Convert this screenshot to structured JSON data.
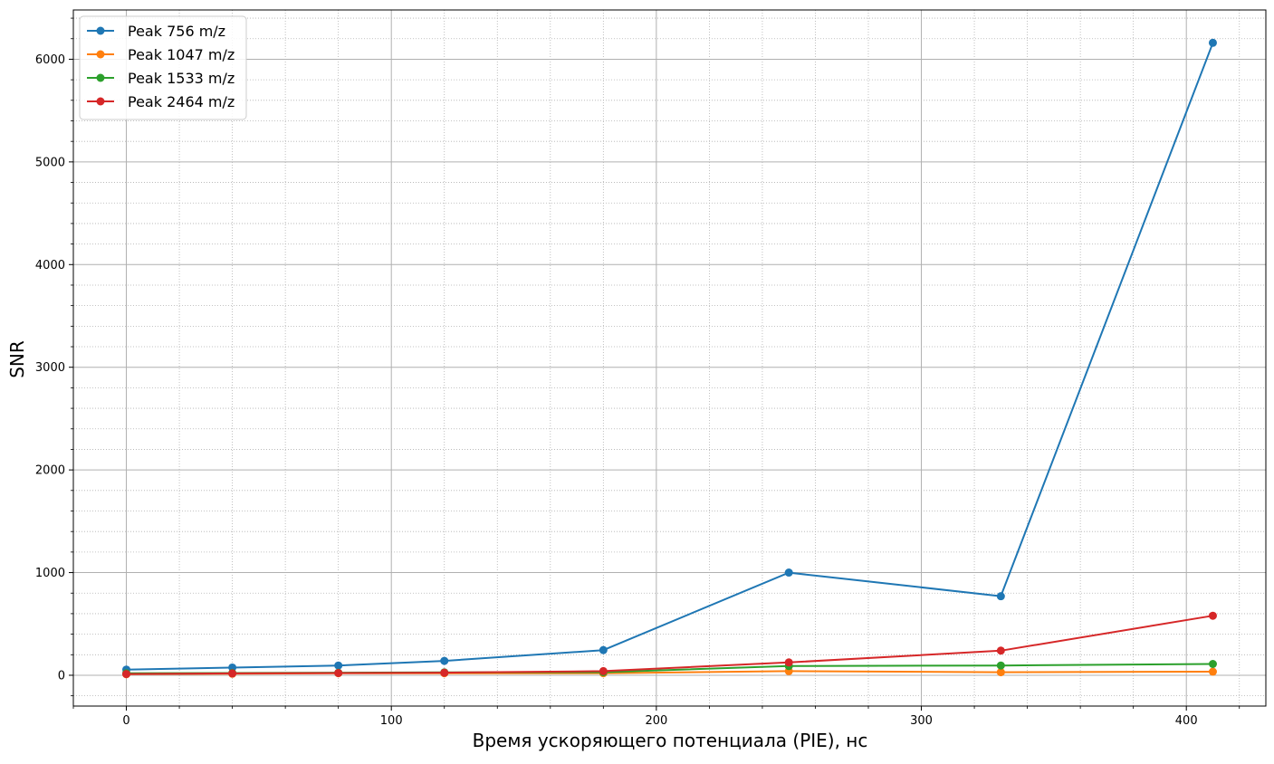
{
  "chart_data": {
    "type": "line",
    "title": "",
    "xlabel": "Время ускоряющего потенциала (PIE), нс",
    "ylabel": "SNR",
    "xlim": [
      -20,
      430
    ],
    "ylim": [
      -300,
      6480
    ],
    "x_ticks": [
      0,
      100,
      200,
      300,
      400
    ],
    "x_tick_labels": [
      "0",
      "100",
      "200",
      "300",
      "400"
    ],
    "x_minor_step": 20,
    "y_ticks": [
      0,
      1000,
      2000,
      3000,
      4000,
      5000,
      6000
    ],
    "y_tick_labels": [
      "0",
      "1000",
      "2000",
      "3000",
      "4000",
      "5000",
      "6000"
    ],
    "y_minor_step": 200,
    "grid": {
      "major": true,
      "minor": true
    },
    "legend_position": "top-left",
    "x": [
      0,
      40,
      80,
      120,
      180,
      250,
      330,
      410
    ],
    "series": [
      {
        "name": "Peak 756 m/z",
        "color": "#1f77b4",
        "values": [
          55,
          75,
          95,
          140,
          245,
          1000,
          770,
          6160
        ]
      },
      {
        "name": "Peak 1047 m/z",
        "color": "#ff7f0e",
        "values": [
          10,
          15,
          20,
          20,
          20,
          40,
          30,
          35
        ]
      },
      {
        "name": "Peak 1533 m/z",
        "color": "#2ca02c",
        "values": [
          20,
          22,
          25,
          28,
          30,
          90,
          95,
          110
        ]
      },
      {
        "name": "Peak 2464 m/z",
        "color": "#d62728",
        "values": [
          12,
          18,
          22,
          25,
          40,
          125,
          240,
          580
        ]
      }
    ]
  }
}
